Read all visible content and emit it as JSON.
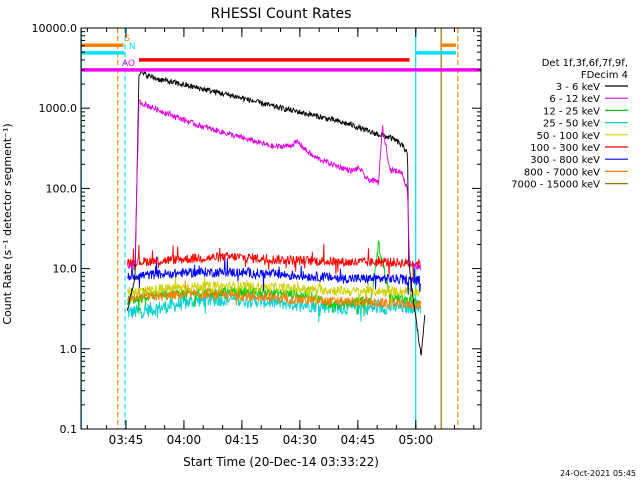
{
  "chart_data": {
    "type": "line",
    "title": "RHESSI Count Rates",
    "xlabel": "Start Time (20-Dec-14 03:33:22)",
    "ylabel": "Count Rate (s⁻¹ detector segment⁻¹)",
    "ylog": true,
    "ylim": [
      0.1,
      10000
    ],
    "yticks": [
      0.1,
      1,
      10,
      100,
      1000,
      10000
    ],
    "ytick_labels": [
      "0.1",
      "1.0",
      "10.0",
      "100.0",
      "1000.0",
      "10000.0"
    ],
    "x_unit": "minutes after 03:33:22",
    "xlim": [
      0,
      103.5
    ],
    "xticks": [
      11.63,
      26.63,
      41.63,
      56.63,
      71.63,
      86.63
    ],
    "xtick_labels": [
      "03:45",
      "04:00",
      "04:15",
      "04:30",
      "04:45",
      "05:00"
    ],
    "legend": {
      "header": [
        "Det 1f,3f,6f,7f,9f,",
        "FDecim 4"
      ],
      "placement": "right"
    },
    "series": [
      {
        "name": "3 - 6 keV",
        "color": "#000000",
        "x": [
          12,
          14,
          15,
          20,
          30,
          40,
          50,
          60,
          70,
          75,
          80,
          82,
          84.5,
          84.8,
          86,
          88,
          89
        ],
        "y": [
          3,
          8,
          2800,
          2300,
          1800,
          1400,
          1050,
          820,
          620,
          500,
          430,
          380,
          290,
          12,
          4,
          0.8,
          3
        ]
      },
      {
        "name": "6 - 12 keV",
        "color": "#e000e0",
        "x": [
          12,
          14,
          15,
          20,
          30,
          40,
          50,
          54,
          56,
          60,
          65,
          70,
          72,
          74,
          77,
          78,
          79,
          80,
          83,
          84.5,
          85,
          86,
          88
        ],
        "y": [
          10,
          12,
          1200,
          950,
          620,
          450,
          330,
          340,
          380,
          250,
          200,
          165,
          180,
          130,
          120,
          580,
          320,
          170,
          160,
          95,
          12,
          11,
          10
        ]
      },
      {
        "name": "12 - 25 keV",
        "color": "#00cc00",
        "x": [
          12,
          20,
          30,
          40,
          50,
          60,
          65,
          70,
          75,
          77,
          80,
          85,
          88
        ],
        "y": [
          4,
          4.8,
          5,
          5.2,
          5,
          4.5,
          3.5,
          3.8,
          4,
          20,
          4.5,
          4,
          3.5
        ]
      },
      {
        "name": "25 - 50 keV",
        "color": "#00d0d0",
        "x": [
          12,
          20,
          30,
          40,
          50,
          60,
          70,
          80,
          88
        ],
        "y": [
          2.8,
          3.2,
          4,
          4.2,
          3.8,
          3.5,
          3.2,
          3.3,
          3.4
        ]
      },
      {
        "name": "50 - 100 keV",
        "color": "#d0d000",
        "x": [
          12,
          20,
          30,
          40,
          50,
          60,
          70,
          80,
          88
        ],
        "y": [
          5.2,
          5.5,
          6,
          6,
          5.8,
          5.5,
          5.2,
          5.2,
          5.2
        ]
      },
      {
        "name": "100 - 300 keV",
        "color": "#ff0000",
        "x": [
          12,
          20,
          30,
          40,
          50,
          60,
          70,
          80,
          88
        ],
        "y": [
          12,
          12.5,
          13.5,
          14,
          13,
          12.5,
          12,
          12,
          11.5
        ]
      },
      {
        "name": "300 - 800 keV",
        "color": "#0000ff",
        "x": [
          12,
          20,
          30,
          40,
          50,
          60,
          70,
          80,
          88
        ],
        "y": [
          8,
          8.5,
          9,
          9,
          8.5,
          8,
          7.5,
          7.5,
          7
        ]
      },
      {
        "name": "800 - 7000 keV",
        "color": "#ff8000",
        "x": [
          12,
          20,
          30,
          40,
          50,
          60,
          70,
          80,
          88
        ],
        "y": [
          4.3,
          4.5,
          4.8,
          4.6,
          4.3,
          4,
          3.8,
          3.7,
          3.5
        ]
      },
      {
        "name": "7000 - 15000 keV",
        "color": "#a07000",
        "x": [],
        "y": []
      }
    ],
    "state_bars": [
      {
        "label": "S",
        "color": "#ff8000",
        "segments": [
          [
            0,
            11
          ],
          [
            93,
            97
          ]
        ],
        "y": 6100,
        "label_x": 11.2
      },
      {
        "label": "N",
        "color": "#00e0ff",
        "segments": [
          [
            0,
            11.2
          ],
          [
            86.5,
            97
          ]
        ],
        "y": 4900,
        "label_x": 12.4
      },
      {
        "label": "",
        "color": "#ff0000",
        "segments": [
          [
            15,
            85
          ]
        ],
        "y": 4000,
        "label_x": null
      },
      {
        "label": "AO",
        "color": "#ff00ff",
        "segments": [
          [
            0,
            103.5
          ]
        ],
        "y": 3000,
        "label_x": 10.6
      }
    ],
    "vlines": [
      {
        "x": 0.1,
        "color": "#00e0ff",
        "dash": false
      },
      {
        "x": 9.5,
        "color": "#ff8000",
        "dash": true
      },
      {
        "x": 11.4,
        "color": "#00e0ff",
        "dash": true
      },
      {
        "x": 86.6,
        "color": "#00e0ff",
        "dash": false
      },
      {
        "x": 93.2,
        "color": "#a07000",
        "dash": false
      },
      {
        "x": 97.5,
        "color": "#ff8000",
        "dash": true
      }
    ],
    "timestamp": "24-Oct-2021 05:45"
  }
}
